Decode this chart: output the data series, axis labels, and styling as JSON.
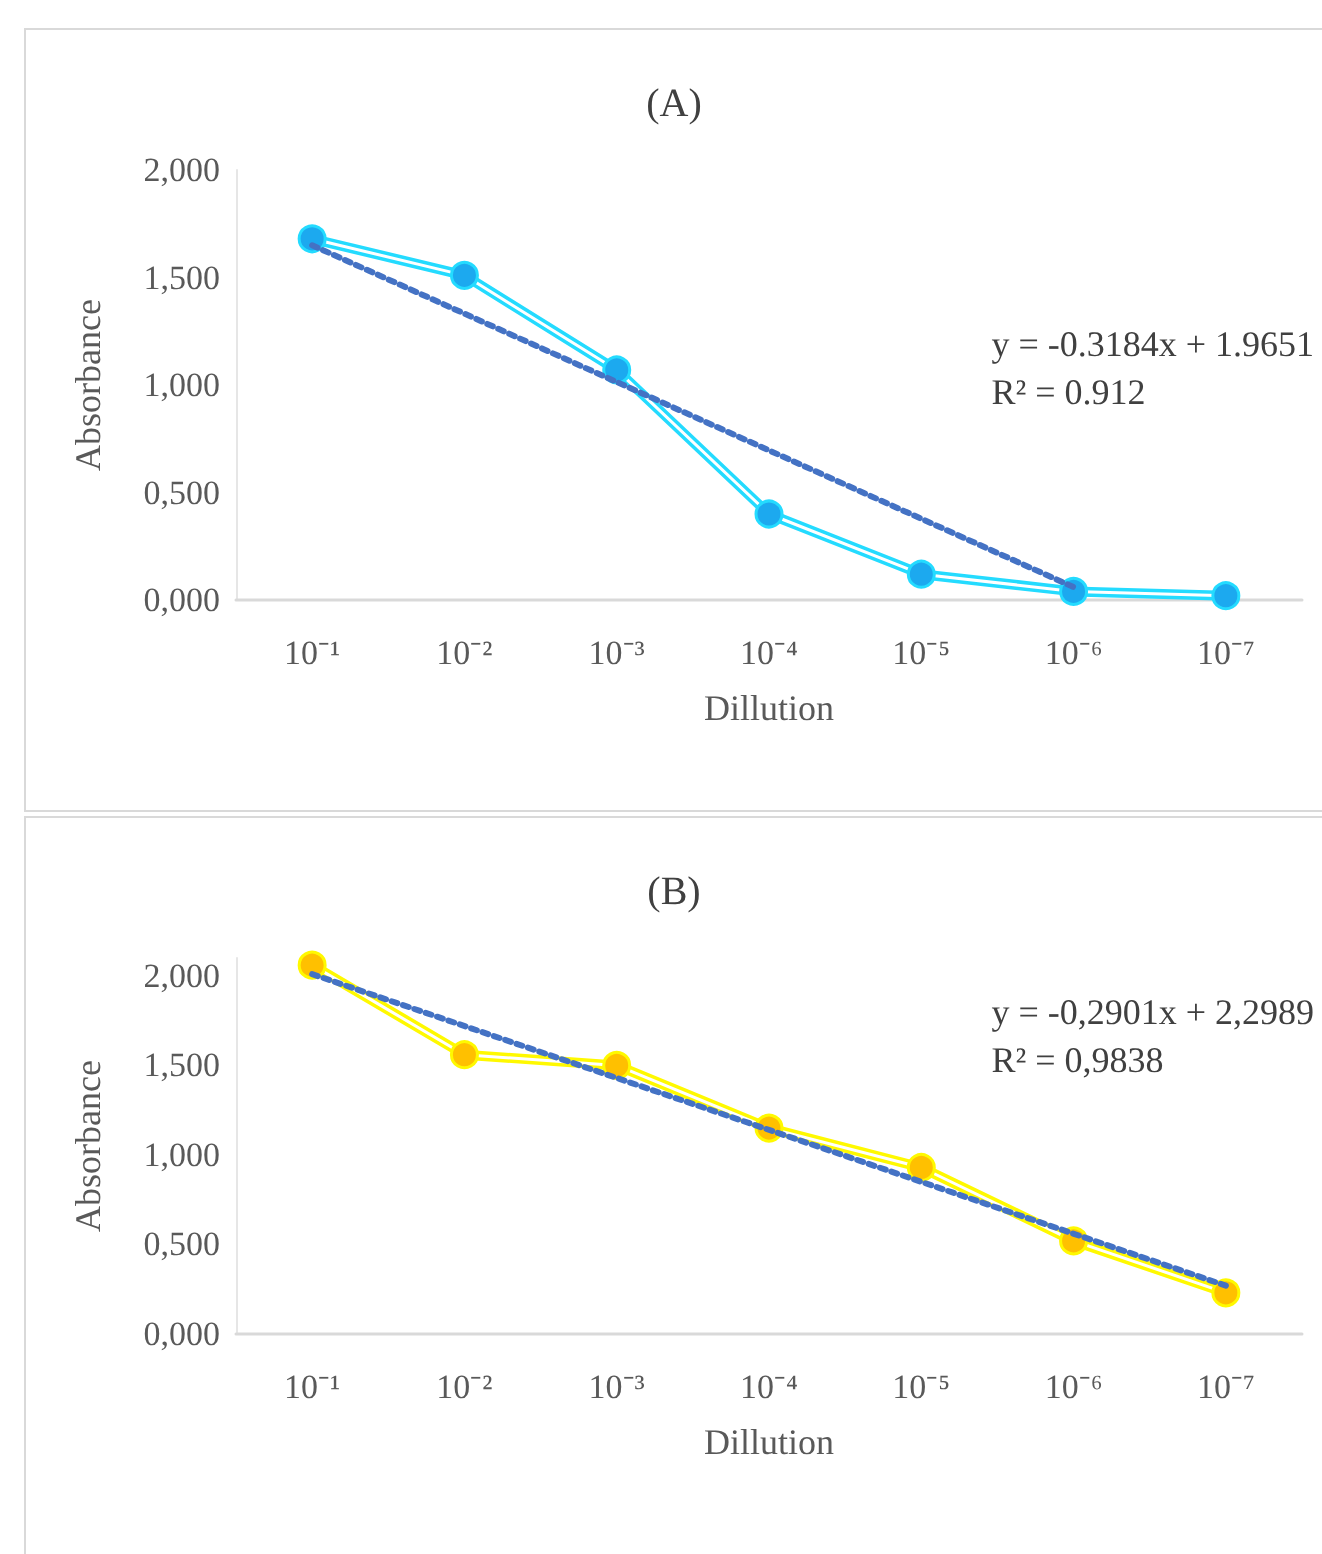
{
  "chart_data": [
    {
      "type": "line",
      "title": "(A)",
      "xlabel": "Dillution",
      "ylabel": "Absorbance",
      "categories": [
        "10⁻¹",
        "10⁻²",
        "10⁻³",
        "10⁻⁴",
        "10⁻⁵",
        "10⁻⁶",
        "10⁻⁷"
      ],
      "series": [
        {
          "color": "#1ca9ef",
          "values": [
            1.68,
            1.51,
            1.07,
            0.4,
            0.12,
            0.04,
            0.02
          ],
          "marker": "circle",
          "line_style": "solid"
        },
        {
          "type": "line",
          "color": "#4472c4",
          "x": [
            "10⁻¹",
            "10⁻⁶"
          ],
          "values": [
            1.65,
            0.06
          ],
          "marker": "none",
          "line_style": "dotted"
        }
      ],
      "ylim": [
        0,
        2
      ],
      "yticks": [
        {
          "value": 0,
          "label": "0,000"
        },
        {
          "value": 0.5,
          "label": "0,500"
        },
        {
          "value": 1,
          "label": "1,000"
        },
        {
          "value": 1.5,
          "label": "1,500"
        },
        {
          "value": 2,
          "label": "2,000"
        }
      ],
      "grid": false,
      "annotations": [
        "y = -0.3184x + 1.9651",
        "R² = 0.912"
      ]
    },
    {
      "type": "line",
      "title": "(B)",
      "xlabel": "Dillution",
      "ylabel": "Absorbance",
      "categories": [
        "10⁻¹",
        "10⁻²",
        "10⁻³",
        "10⁻⁴",
        "10⁻⁵",
        "10⁻⁶",
        "10⁻⁷"
      ],
      "series": [
        {
          "color": "#ffc000",
          "values": [
            2.06,
            1.56,
            1.5,
            1.15,
            0.93,
            0.52,
            0.23
          ],
          "marker": "circle",
          "line_style": "solid"
        },
        {
          "type": "line",
          "color": "#4472c4",
          "x": [
            "10⁻¹",
            "10⁻⁷"
          ],
          "values": [
            2.01,
            0.27
          ],
          "marker": "none",
          "line_style": "dotted"
        }
      ],
      "ylim": [
        0,
        2.1
      ],
      "yticks": [
        {
          "value": 0,
          "label": "0,000"
        },
        {
          "value": 0.5,
          "label": "0,500"
        },
        {
          "value": 1,
          "label": "1,000"
        },
        {
          "value": 1.5,
          "label": "1,500"
        },
        {
          "value": 2,
          "label": "2,000"
        }
      ],
      "grid": false,
      "annotations": [
        "y = -0,2901x + 2,2989",
        "R² = 0,9838"
      ]
    }
  ]
}
